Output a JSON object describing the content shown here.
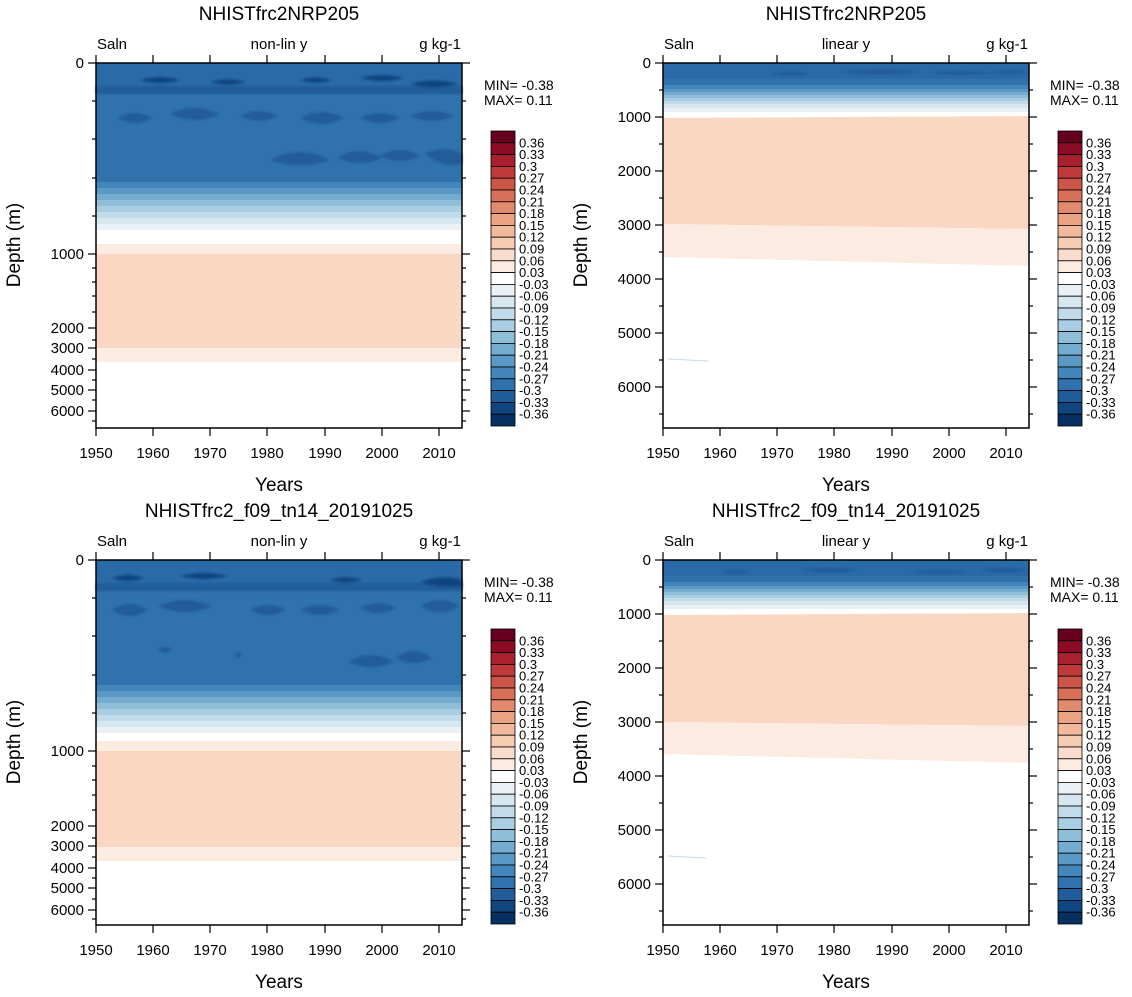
{
  "colorbar": {
    "labels": [
      "0.36",
      "0.33",
      "0.3",
      "0.27",
      "0.24",
      "0.21",
      "0.18",
      "0.15",
      "0.12",
      "0.09",
      "0.06",
      "0.03",
      "-0.03",
      "-0.06",
      "-0.09",
      "-0.12",
      "-0.15",
      "-0.18",
      "-0.21",
      "-0.24",
      "-0.27",
      "-0.3",
      "-0.33",
      "-0.36"
    ],
    "colors": [
      "#67001f",
      "#8c0c25",
      "#a9202e",
      "#bf3b3b",
      "#cc5549",
      "#d8705a",
      "#e28a6d",
      "#eba383",
      "#f2b99c",
      "#f6ccb3",
      "#f9dccb",
      "#fcebe1",
      "#ffffff",
      "#e9f1f6",
      "#d7e7f0",
      "#c2dbea",
      "#a9cde3",
      "#8fbed9",
      "#74acd0",
      "#5a99c5",
      "#4286bb",
      "#2f72ae",
      "#205b9a",
      "#114580",
      "#053061"
    ]
  },
  "chart_data": [
    {
      "type": "heatmap",
      "title": "NHISTfrc2NRP205",
      "left_string": "Saln",
      "center_string": "non-lin y",
      "right_string": "g kg-1",
      "xlabel": "Years",
      "ylabel": "Depth (m)",
      "xlim": [
        1950,
        2014
      ],
      "ylim": [
        0,
        6500
      ],
      "y_scale": "non-linear",
      "x_ticks": [
        "1950",
        "1960",
        "1970",
        "1980",
        "1990",
        "2000",
        "2010"
      ],
      "y_ticks": [
        "0",
        "1000",
        "2000",
        "3000",
        "4000",
        "5000",
        "6000"
      ],
      "min_label": "MIN= -0.38",
      "max_label": "MAX=  0.11",
      "variant": "a"
    },
    {
      "type": "heatmap",
      "title": "NHISTfrc2NRP205",
      "left_string": "Saln",
      "center_string": "linear y",
      "right_string": "g kg-1",
      "xlabel": "Years",
      "ylabel": "Depth (m)",
      "xlim": [
        1950,
        2014
      ],
      "ylim": [
        0,
        6800
      ],
      "y_scale": "linear",
      "x_ticks": [
        "1950",
        "1960",
        "1970",
        "1980",
        "1990",
        "2000",
        "2010"
      ],
      "y_ticks": [
        "0",
        "1000",
        "2000",
        "3000",
        "4000",
        "5000",
        "6000"
      ],
      "min_label": "MIN= -0.38",
      "max_label": "MAX=  0.11",
      "variant": "a"
    },
    {
      "type": "heatmap",
      "title": "NHISTfrc2_f09_tn14_20191025",
      "left_string": "Saln",
      "center_string": "non-lin y",
      "right_string": "g kg-1",
      "xlabel": "Years",
      "ylabel": "Depth (m)",
      "xlim": [
        1950,
        2014
      ],
      "ylim": [
        0,
        6500
      ],
      "y_scale": "non-linear",
      "x_ticks": [
        "1950",
        "1960",
        "1970",
        "1980",
        "1990",
        "2000",
        "2010"
      ],
      "y_ticks": [
        "0",
        "1000",
        "2000",
        "3000",
        "4000",
        "5000",
        "6000"
      ],
      "min_label": "MIN= -0.38",
      "max_label": "MAX=  0.11",
      "variant": "b"
    },
    {
      "type": "heatmap",
      "title": "NHISTfrc2_f09_tn14_20191025",
      "left_string": "Saln",
      "center_string": "linear y",
      "right_string": "g kg-1",
      "xlabel": "Years",
      "ylabel": "Depth (m)",
      "xlim": [
        1950,
        2014
      ],
      "ylim": [
        0,
        6800
      ],
      "y_scale": "linear",
      "x_ticks": [
        "1950",
        "1960",
        "1970",
        "1980",
        "1990",
        "2000",
        "2010"
      ],
      "y_ticks": [
        "0",
        "1000",
        "2000",
        "3000",
        "4000",
        "5000",
        "6000"
      ],
      "min_label": "MIN= -0.38",
      "max_label": "MAX=  0.11",
      "variant": "b"
    }
  ]
}
